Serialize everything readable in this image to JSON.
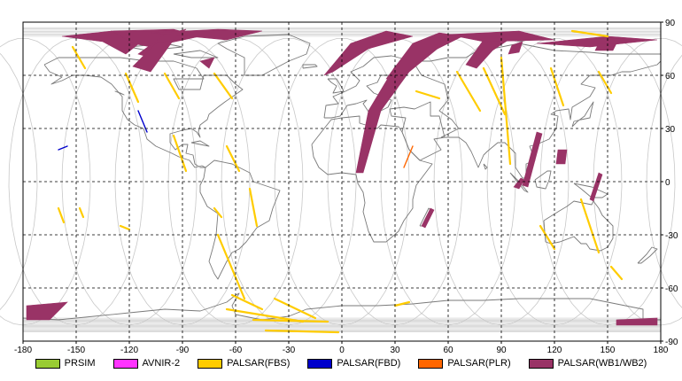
{
  "map": {
    "projection": "equirectangular",
    "lon_range": [
      -180,
      180
    ],
    "lat_range": [
      -90,
      90
    ],
    "x_ticks": [
      "-180",
      "-150",
      "-120",
      "-90",
      "-60",
      "-30",
      "0",
      "30",
      "60",
      "90",
      "120",
      "150",
      "180"
    ],
    "y_ticks": [
      "90",
      "60",
      "30",
      "0",
      "-30",
      "-60",
      "-90"
    ],
    "grid": "dashed",
    "colors": {
      "coastline": "#7a7a7a",
      "orbit": "#c8c8c8",
      "grid": "#000000"
    }
  },
  "legend": [
    {
      "label": "PRSIM",
      "color": "#99cc33"
    },
    {
      "label": "AVNIR-2",
      "color": "#ff33ff"
    },
    {
      "label": "PALSAR(FBS)",
      "color": "#ffcc00"
    },
    {
      "label": "PALSAR(FBD)",
      "color": "#0000cc"
    },
    {
      "label": "PALSAR(PLR)",
      "color": "#ff6600"
    },
    {
      "label": "PALSAR(WB1/WB2)",
      "color": "#993366"
    }
  ],
  "swaths": {
    "wb": [
      [
        [
          -178,
          -70
        ],
        [
          -155,
          -68
        ],
        [
          -165,
          -78
        ],
        [
          -178,
          -78
        ]
      ],
      [
        [
          155,
          -78
        ],
        [
          178,
          -77
        ],
        [
          178,
          -81
        ],
        [
          155,
          -81
        ]
      ],
      [
        [
          -158,
          82
        ],
        [
          -130,
          85
        ],
        [
          -112,
          80
        ],
        [
          -122,
          72
        ],
        [
          -135,
          79
        ]
      ],
      [
        [
          -130,
          85
        ],
        [
          -95,
          86
        ],
        [
          -80,
          82
        ],
        [
          -108,
          76
        ],
        [
          -118,
          78
        ]
      ],
      [
        [
          -115,
          72
        ],
        [
          -100,
          83
        ],
        [
          -88,
          86
        ],
        [
          -98,
          78
        ],
        [
          -108,
          70
        ]
      ],
      [
        [
          -108,
          84
        ],
        [
          -70,
          86
        ],
        [
          -45,
          85
        ],
        [
          -65,
          80
        ]
      ],
      [
        [
          -118,
          65
        ],
        [
          -105,
          78
        ],
        [
          -95,
          80
        ],
        [
          -108,
          62
        ]
      ],
      [
        [
          -80,
          68
        ],
        [
          -72,
          70
        ],
        [
          -75,
          64
        ]
      ],
      [
        [
          -10,
          60
        ],
        [
          5,
          78
        ],
        [
          25,
          85
        ],
        [
          40,
          82
        ],
        [
          15,
          75
        ],
        [
          -5,
          62
        ]
      ],
      [
        [
          8,
          5
        ],
        [
          15,
          40
        ],
        [
          30,
          65
        ],
        [
          50,
          82
        ],
        [
          60,
          80
        ],
        [
          38,
          62
        ],
        [
          22,
          40
        ],
        [
          12,
          5
        ]
      ],
      [
        [
          25,
          58
        ],
        [
          40,
          78
        ],
        [
          55,
          84
        ],
        [
          68,
          82
        ],
        [
          48,
          72
        ],
        [
          32,
          58
        ]
      ],
      [
        [
          70,
          66
        ],
        [
          80,
          80
        ],
        [
          100,
          84
        ],
        [
          85,
          74
        ],
        [
          76,
          64
        ]
      ],
      [
        [
          60,
          83
        ],
        [
          100,
          85
        ],
        [
          120,
          80
        ],
        [
          80,
          79
        ]
      ],
      [
        [
          110,
          78
        ],
        [
          150,
          82
        ],
        [
          178,
          80
        ],
        [
          140,
          76
        ]
      ],
      [
        [
          96,
          77
        ],
        [
          102,
          79
        ],
        [
          100,
          73
        ],
        [
          94,
          72
        ]
      ],
      [
        [
          145,
          78
        ],
        [
          155,
          78
        ],
        [
          153,
          74
        ],
        [
          143,
          74
        ]
      ],
      [
        [
          102,
          -2
        ],
        [
          110,
          28
        ],
        [
          113,
          27
        ],
        [
          105,
          -3
        ]
      ],
      [
        [
          97,
          -3
        ],
        [
          101,
          2
        ],
        [
          103,
          1
        ],
        [
          100,
          -4
        ]
      ],
      [
        [
          122,
          18
        ],
        [
          127,
          18
        ],
        [
          126,
          10
        ],
        [
          121,
          10
        ]
      ],
      [
        [
          140,
          -10
        ],
        [
          145,
          5
        ],
        [
          147,
          4
        ],
        [
          142,
          -11
        ]
      ],
      [
        [
          45,
          -25
        ],
        [
          50,
          -15
        ],
        [
          52,
          -16
        ],
        [
          47,
          -26
        ]
      ]
    ],
    "fbs": [
      [
        [
          -152,
          76
        ],
        [
          -145,
          64
        ]
      ],
      [
        [
          -122,
          61
        ],
        [
          -115,
          45
        ]
      ],
      [
        [
          -100,
          61
        ],
        [
          -92,
          47
        ]
      ],
      [
        [
          -72,
          61
        ],
        [
          -62,
          47
        ]
      ],
      [
        [
          -95,
          26
        ],
        [
          -88,
          6
        ]
      ],
      [
        [
          -65,
          20
        ],
        [
          -58,
          6
        ]
      ],
      [
        [
          -52,
          -4
        ],
        [
          -48,
          -25
        ]
      ],
      [
        [
          -70,
          -30
        ],
        [
          -55,
          -66
        ]
      ],
      [
        [
          -62,
          -64
        ],
        [
          -45,
          -72
        ]
      ],
      [
        [
          -38,
          -66
        ],
        [
          -15,
          -77
        ]
      ],
      [
        [
          -65,
          -72
        ],
        [
          -22,
          -79
        ]
      ],
      [
        [
          -50,
          -78
        ],
        [
          -8,
          -79
        ]
      ],
      [
        [
          -43,
          -84
        ],
        [
          -2,
          -85
        ]
      ],
      [
        [
          30,
          -70
        ],
        [
          38,
          -68
        ]
      ],
      [
        [
          42,
          51
        ],
        [
          55,
          47
        ]
      ],
      [
        [
          65,
          62
        ],
        [
          78,
          40
        ]
      ],
      [
        [
          80,
          64
        ],
        [
          92,
          38
        ]
      ],
      [
        [
          90,
          70
        ],
        [
          95,
          10
        ]
      ],
      [
        [
          118,
          64
        ],
        [
          125,
          43
        ]
      ],
      [
        [
          130,
          85
        ],
        [
          150,
          82
        ]
      ],
      [
        [
          145,
          62
        ],
        [
          152,
          50
        ]
      ],
      [
        [
          135,
          -10
        ],
        [
          145,
          -40
        ]
      ],
      [
        [
          112,
          -25
        ],
        [
          120,
          -38
        ]
      ],
      [
        [
          152,
          -48
        ],
        [
          158,
          -55
        ]
      ],
      [
        [
          -160,
          -15
        ],
        [
          -157,
          -23
        ]
      ],
      [
        [
          -148,
          -15
        ],
        [
          -146,
          -20
        ]
      ],
      [
        [
          -125,
          -25
        ],
        [
          -120,
          -27
        ]
      ],
      [
        [
          -72,
          -15
        ],
        [
          -68,
          -20
        ]
      ]
    ],
    "fbd": [
      [
        [
          -115,
          40
        ],
        [
          -110,
          28
        ]
      ],
      [
        [
          -160,
          18
        ],
        [
          -155,
          20
        ]
      ]
    ],
    "plr": [
      [
        [
          35,
          8
        ],
        [
          40,
          20
        ]
      ]
    ]
  }
}
